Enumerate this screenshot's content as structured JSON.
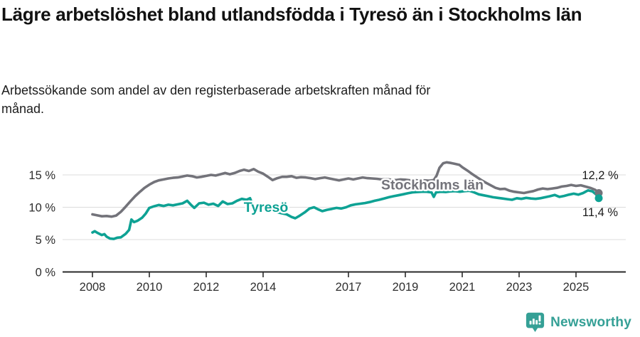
{
  "header": {
    "title": "Lägre arbetslöshet bland utlandsfödda i Tyresö än i Stockholms län",
    "subtitle": "Arbetssökande som andel av den registerbaserade arbetskraften månad för månad."
  },
  "footer": {
    "brand": "Newsworthy",
    "brand_color": "#35A096"
  },
  "chart_data": {
    "type": "line",
    "title": "Lägre arbetslöshet bland utlandsfödda i Tyresö än i Stockholms län",
    "xlabel": "",
    "ylabel": "%",
    "x_range_axis": [
      2006.95,
      2026.75
    ],
    "ylim": [
      0,
      17.5
    ],
    "grid": true,
    "legend_position": "inline-labels",
    "y_ticks": [
      {
        "value": 0,
        "label": "0 %"
      },
      {
        "value": 5,
        "label": "5 %"
      },
      {
        "value": 10,
        "label": "10 %"
      },
      {
        "value": 15,
        "label": "15 %"
      }
    ],
    "x_ticks": [
      {
        "value": 2008,
        "label": "2008"
      },
      {
        "value": 2010,
        "label": "2010"
      },
      {
        "value": 2012,
        "label": "2012"
      },
      {
        "value": 2014,
        "label": "2014"
      },
      {
        "value": 2017,
        "label": "2017"
      },
      {
        "value": 2019,
        "label": "2019"
      },
      {
        "value": 2021,
        "label": "2021"
      },
      {
        "value": 2023,
        "label": "2023"
      },
      {
        "value": 2025,
        "label": "2025"
      }
    ],
    "series": [
      {
        "name": "Stockholms län",
        "slug": "stockholms-lan",
        "color": "#73737A",
        "end_label": "12,2 %",
        "final_value": 12.2,
        "label_at": [
          2019.95,
          12.75
        ],
        "end_label_at": [
          2025.85,
          14.35
        ],
        "points": [
          [
            2008.0,
            8.9
          ],
          [
            2008.17,
            8.75
          ],
          [
            2008.33,
            8.6
          ],
          [
            2008.5,
            8.65
          ],
          [
            2008.67,
            8.55
          ],
          [
            2008.83,
            8.7
          ],
          [
            2009.0,
            9.3
          ],
          [
            2009.17,
            10.1
          ],
          [
            2009.33,
            10.9
          ],
          [
            2009.5,
            11.7
          ],
          [
            2009.67,
            12.4
          ],
          [
            2009.83,
            13.0
          ],
          [
            2010.0,
            13.5
          ],
          [
            2010.17,
            13.9
          ],
          [
            2010.33,
            14.15
          ],
          [
            2010.5,
            14.3
          ],
          [
            2010.67,
            14.45
          ],
          [
            2010.83,
            14.55
          ],
          [
            2011.0,
            14.6
          ],
          [
            2011.17,
            14.75
          ],
          [
            2011.33,
            14.9
          ],
          [
            2011.5,
            14.8
          ],
          [
            2011.67,
            14.6
          ],
          [
            2011.83,
            14.7
          ],
          [
            2012.0,
            14.85
          ],
          [
            2012.17,
            15.0
          ],
          [
            2012.33,
            14.9
          ],
          [
            2012.5,
            15.1
          ],
          [
            2012.67,
            15.3
          ],
          [
            2012.83,
            15.1
          ],
          [
            2013.0,
            15.3
          ],
          [
            2013.17,
            15.6
          ],
          [
            2013.33,
            15.8
          ],
          [
            2013.5,
            15.6
          ],
          [
            2013.67,
            15.9
          ],
          [
            2013.83,
            15.5
          ],
          [
            2014.0,
            15.2
          ],
          [
            2014.17,
            14.7
          ],
          [
            2014.33,
            14.2
          ],
          [
            2014.5,
            14.5
          ],
          [
            2014.67,
            14.7
          ],
          [
            2014.83,
            14.7
          ],
          [
            2015.0,
            14.8
          ],
          [
            2015.17,
            14.55
          ],
          [
            2015.33,
            14.65
          ],
          [
            2015.5,
            14.6
          ],
          [
            2015.67,
            14.5
          ],
          [
            2015.83,
            14.35
          ],
          [
            2016.0,
            14.5
          ],
          [
            2016.17,
            14.6
          ],
          [
            2016.33,
            14.45
          ],
          [
            2016.5,
            14.3
          ],
          [
            2016.67,
            14.15
          ],
          [
            2016.83,
            14.3
          ],
          [
            2017.0,
            14.45
          ],
          [
            2017.17,
            14.3
          ],
          [
            2017.33,
            14.45
          ],
          [
            2017.5,
            14.6
          ],
          [
            2017.67,
            14.5
          ],
          [
            2017.83,
            14.45
          ],
          [
            2018.0,
            14.4
          ],
          [
            2018.17,
            14.3
          ],
          [
            2018.33,
            14.35
          ],
          [
            2018.5,
            14.25
          ],
          [
            2018.67,
            14.2
          ],
          [
            2018.83,
            14.3
          ],
          [
            2019.0,
            14.25
          ],
          [
            2019.17,
            14.15
          ],
          [
            2019.33,
            14.2
          ],
          [
            2019.5,
            14.1
          ],
          [
            2019.67,
            14.15
          ],
          [
            2019.83,
            14.1
          ],
          [
            2020.0,
            14.2
          ],
          [
            2020.1,
            14.9
          ],
          [
            2020.2,
            16.1
          ],
          [
            2020.33,
            16.8
          ],
          [
            2020.45,
            16.95
          ],
          [
            2020.6,
            16.85
          ],
          [
            2020.75,
            16.7
          ],
          [
            2020.9,
            16.55
          ],
          [
            2021.0,
            16.2
          ],
          [
            2021.17,
            15.7
          ],
          [
            2021.33,
            15.2
          ],
          [
            2021.5,
            14.7
          ],
          [
            2021.67,
            14.2
          ],
          [
            2021.83,
            13.8
          ],
          [
            2022.0,
            13.4
          ],
          [
            2022.17,
            13.0
          ],
          [
            2022.33,
            12.8
          ],
          [
            2022.5,
            12.85
          ],
          [
            2022.67,
            12.55
          ],
          [
            2022.83,
            12.4
          ],
          [
            2023.0,
            12.3
          ],
          [
            2023.17,
            12.2
          ],
          [
            2023.33,
            12.35
          ],
          [
            2023.5,
            12.5
          ],
          [
            2023.67,
            12.75
          ],
          [
            2023.83,
            12.9
          ],
          [
            2024.0,
            12.8
          ],
          [
            2024.17,
            12.9
          ],
          [
            2024.33,
            13.0
          ],
          [
            2024.5,
            13.2
          ],
          [
            2024.67,
            13.3
          ],
          [
            2024.83,
            13.45
          ],
          [
            2025.0,
            13.3
          ],
          [
            2025.17,
            13.4
          ],
          [
            2025.33,
            13.2
          ],
          [
            2025.5,
            13.0
          ],
          [
            2025.67,
            12.7
          ],
          [
            2025.8,
            12.2
          ]
        ]
      },
      {
        "name": "Tyresö",
        "slug": "tyreso",
        "color": "#0EA294",
        "end_label": "11,4 %",
        "final_value": 11.4,
        "label_at": [
          2014.1,
          9.3
        ],
        "end_label_at": [
          2025.85,
          8.65
        ],
        "points": [
          [
            2008.0,
            6.1
          ],
          [
            2008.08,
            6.3
          ],
          [
            2008.17,
            6.05
          ],
          [
            2008.33,
            5.7
          ],
          [
            2008.42,
            5.85
          ],
          [
            2008.5,
            5.45
          ],
          [
            2008.62,
            5.15
          ],
          [
            2008.75,
            5.1
          ],
          [
            2008.87,
            5.3
          ],
          [
            2009.0,
            5.35
          ],
          [
            2009.17,
            5.9
          ],
          [
            2009.29,
            6.5
          ],
          [
            2009.37,
            8.1
          ],
          [
            2009.46,
            7.7
          ],
          [
            2009.58,
            7.9
          ],
          [
            2009.75,
            8.4
          ],
          [
            2009.87,
            9.0
          ],
          [
            2010.0,
            9.9
          ],
          [
            2010.17,
            10.15
          ],
          [
            2010.33,
            10.35
          ],
          [
            2010.5,
            10.2
          ],
          [
            2010.67,
            10.4
          ],
          [
            2010.83,
            10.3
          ],
          [
            2011.0,
            10.45
          ],
          [
            2011.17,
            10.6
          ],
          [
            2011.33,
            11.0
          ],
          [
            2011.46,
            10.4
          ],
          [
            2011.58,
            9.9
          ],
          [
            2011.75,
            10.6
          ],
          [
            2011.92,
            10.7
          ],
          [
            2012.08,
            10.4
          ],
          [
            2012.25,
            10.55
          ],
          [
            2012.42,
            10.2
          ],
          [
            2012.58,
            10.9
          ],
          [
            2012.75,
            10.5
          ],
          [
            2012.92,
            10.6
          ],
          [
            2013.08,
            11.0
          ],
          [
            2013.25,
            11.3
          ],
          [
            2013.42,
            11.15
          ],
          [
            2013.54,
            11.4
          ],
          [
            2013.63,
            10.4
          ],
          [
            2013.79,
            10.0
          ],
          [
            2014.0,
            9.8
          ],
          [
            2014.21,
            9.55
          ],
          [
            2014.42,
            9.3
          ],
          [
            2014.63,
            9.1
          ],
          [
            2014.83,
            8.9
          ],
          [
            2015.0,
            8.5
          ],
          [
            2015.13,
            8.3
          ],
          [
            2015.29,
            8.7
          ],
          [
            2015.46,
            9.2
          ],
          [
            2015.63,
            9.8
          ],
          [
            2015.79,
            10.0
          ],
          [
            2015.92,
            9.7
          ],
          [
            2016.08,
            9.4
          ],
          [
            2016.25,
            9.6
          ],
          [
            2016.42,
            9.75
          ],
          [
            2016.58,
            9.9
          ],
          [
            2016.75,
            9.8
          ],
          [
            2016.92,
            10.0
          ],
          [
            2017.08,
            10.3
          ],
          [
            2017.25,
            10.45
          ],
          [
            2017.42,
            10.55
          ],
          [
            2017.58,
            10.65
          ],
          [
            2017.75,
            10.8
          ],
          [
            2017.92,
            11.0
          ],
          [
            2018.08,
            11.15
          ],
          [
            2018.25,
            11.35
          ],
          [
            2018.42,
            11.55
          ],
          [
            2018.58,
            11.7
          ],
          [
            2018.75,
            11.85
          ],
          [
            2018.92,
            12.0
          ],
          [
            2019.08,
            12.15
          ],
          [
            2019.25,
            12.3
          ],
          [
            2019.42,
            12.35
          ],
          [
            2019.58,
            12.4
          ],
          [
            2019.75,
            12.4
          ],
          [
            2019.92,
            12.3
          ],
          [
            2020.0,
            11.6
          ],
          [
            2020.08,
            12.3
          ],
          [
            2020.25,
            12.4
          ],
          [
            2020.42,
            12.35
          ],
          [
            2020.58,
            12.45
          ],
          [
            2020.75,
            12.5
          ],
          [
            2020.92,
            12.4
          ],
          [
            2021.08,
            12.5
          ],
          [
            2021.25,
            12.55
          ],
          [
            2021.42,
            12.3
          ],
          [
            2021.58,
            12.0
          ],
          [
            2021.75,
            11.85
          ],
          [
            2021.92,
            11.7
          ],
          [
            2022.08,
            11.55
          ],
          [
            2022.25,
            11.45
          ],
          [
            2022.42,
            11.35
          ],
          [
            2022.58,
            11.25
          ],
          [
            2022.75,
            11.15
          ],
          [
            2022.92,
            11.4
          ],
          [
            2023.08,
            11.3
          ],
          [
            2023.25,
            11.45
          ],
          [
            2023.42,
            11.35
          ],
          [
            2023.58,
            11.3
          ],
          [
            2023.75,
            11.4
          ],
          [
            2023.92,
            11.55
          ],
          [
            2024.08,
            11.7
          ],
          [
            2024.25,
            11.9
          ],
          [
            2024.42,
            11.6
          ],
          [
            2024.58,
            11.75
          ],
          [
            2024.75,
            11.95
          ],
          [
            2024.92,
            12.1
          ],
          [
            2025.08,
            11.95
          ],
          [
            2025.25,
            12.2
          ],
          [
            2025.42,
            12.6
          ],
          [
            2025.58,
            12.45
          ],
          [
            2025.7,
            12.0
          ],
          [
            2025.8,
            11.4
          ]
        ]
      }
    ]
  }
}
